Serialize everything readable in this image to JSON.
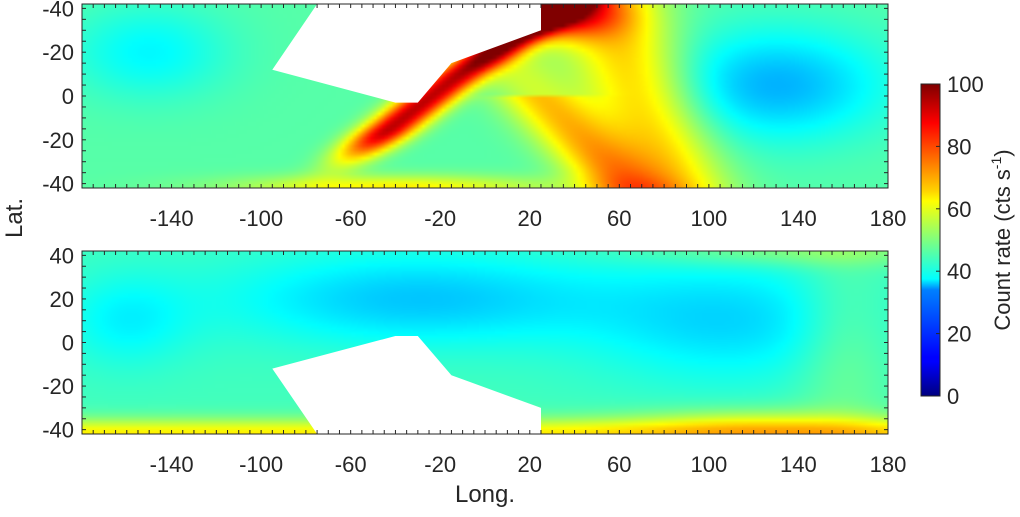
{
  "chart_data": [
    {
      "type": "heatmap",
      "panel": "top",
      "xlabel": "",
      "ylabel": "Lat.",
      "xlim": [
        -180,
        180
      ],
      "ylim": [
        -42,
        42
      ],
      "y_axis_reversed": true,
      "xticks": [
        -140,
        -100,
        -60,
        -20,
        20,
        60,
        100,
        140,
        180
      ],
      "yticks": [
        -40,
        -20,
        0,
        -20,
        -40
      ],
      "yticks_note": "tick labels as printed, top to bottom",
      "background_level": 45,
      "features": [
        {
          "name": "main band",
          "peak": 95,
          "description": "bright diagonal band from about (-30, 5) curving to about (20, -40)"
        },
        {
          "name": "southern hot spot",
          "peak": 90,
          "x": 30,
          "y": -38
        },
        {
          "name": "secondary arc",
          "peak": 70,
          "description": "arc from about (60, -40) up to about (90, 40)"
        },
        {
          "name": "low region east",
          "peak": 30,
          "x": 130,
          "y": -5
        }
      ],
      "no_data_region": [
        [
          -95,
          -12
        ],
        [
          -40,
          3
        ],
        [
          -30,
          3
        ],
        [
          -15,
          -15
        ],
        [
          25,
          -30
        ],
        [
          25,
          -42
        ],
        [
          -75,
          -42
        ]
      ]
    },
    {
      "type": "heatmap",
      "panel": "bottom",
      "xlabel": "Long.",
      "ylabel": "Lat.",
      "xlim": [
        -180,
        180
      ],
      "ylim": [
        -42,
        42
      ],
      "xticks": [
        -140,
        -100,
        -60,
        -20,
        20,
        60,
        100,
        140,
        180
      ],
      "yticks": [
        40,
        20,
        0,
        -20,
        -40
      ],
      "background_level": 42,
      "features": [
        {
          "name": "southern band",
          "peak": 65,
          "y": -40
        },
        {
          "name": "low region centre",
          "peak": 32,
          "x": -30,
          "y": 20
        },
        {
          "name": "low region east",
          "peak": 33,
          "x": 110,
          "y": 10
        }
      ],
      "no_data_region": [
        [
          -95,
          -12
        ],
        [
          -40,
          3
        ],
        [
          -30,
          3
        ],
        [
          -15,
          -15
        ],
        [
          25,
          -30
        ],
        [
          25,
          -42
        ],
        [
          -75,
          -42
        ]
      ]
    }
  ],
  "colorbar": {
    "label": "Count rate (cts s",
    "label_superscript": "-1",
    "label_close": ")",
    "colormap": "jet",
    "range": [
      0,
      100
    ],
    "ticks": [
      100,
      80,
      60,
      40,
      20,
      0
    ]
  }
}
